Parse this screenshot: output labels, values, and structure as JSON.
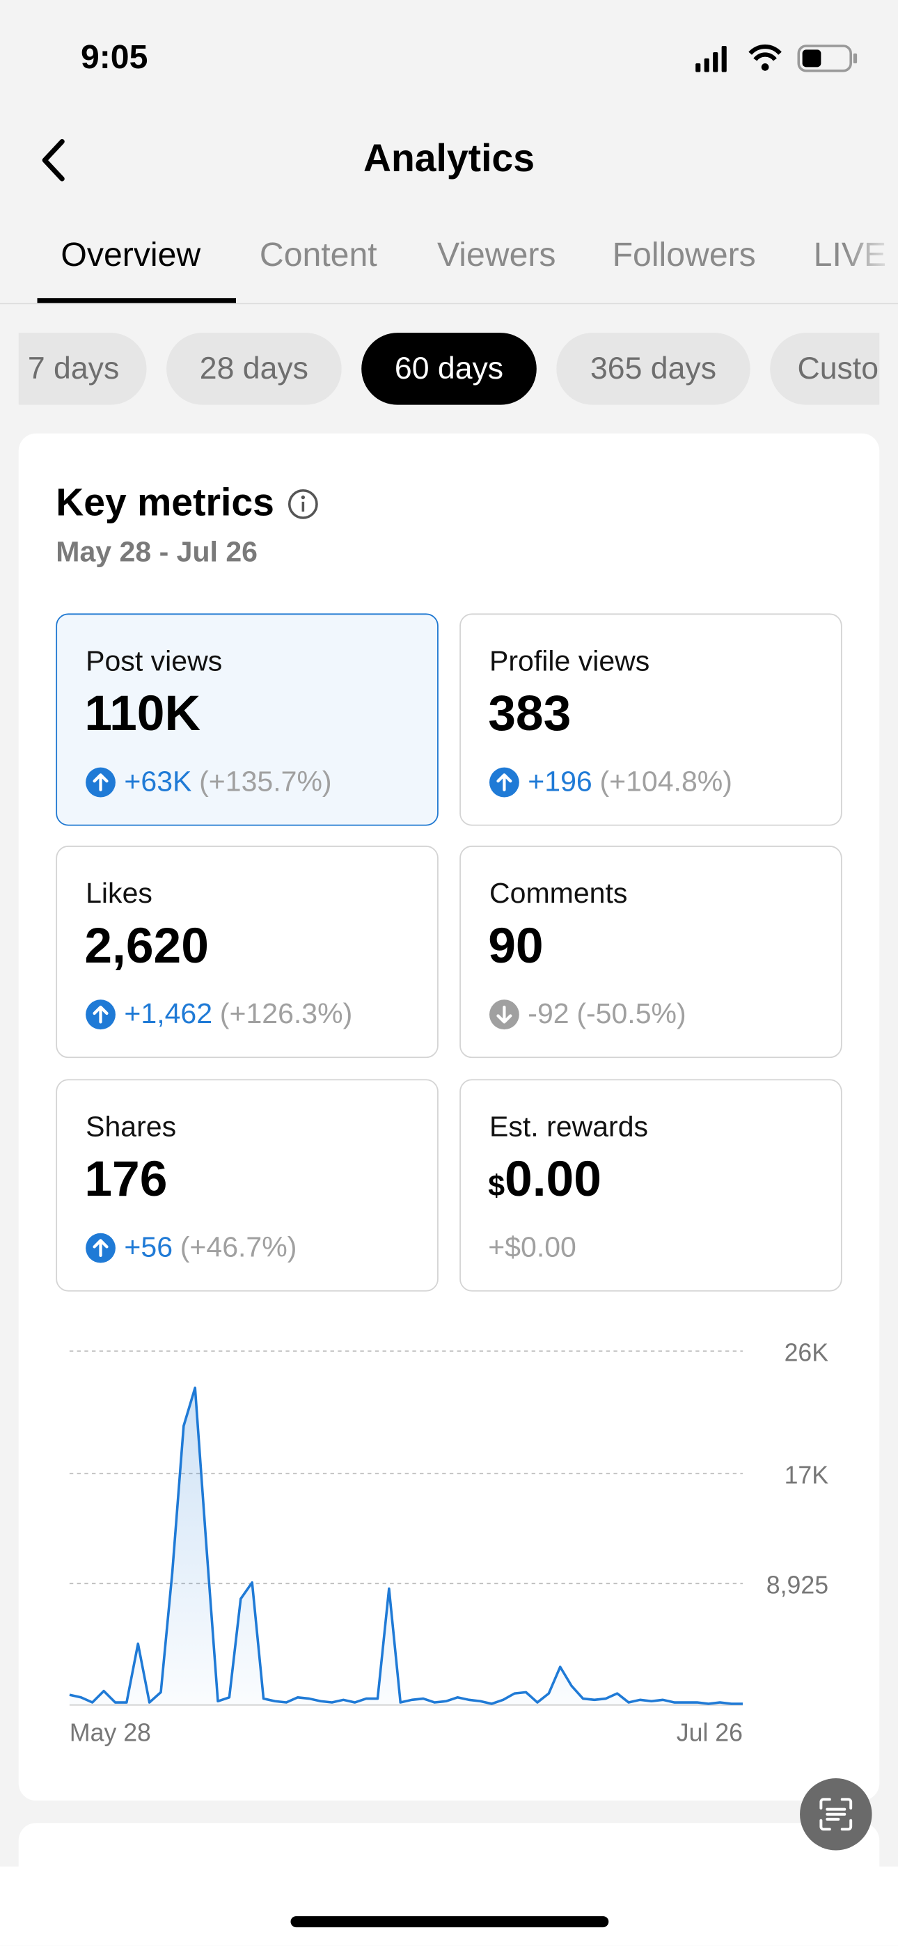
{
  "status_bar": {
    "time": "9:05"
  },
  "header": {
    "title": "Analytics"
  },
  "tabs": [
    "Overview",
    "Content",
    "Viewers",
    "Followers",
    "LIVE"
  ],
  "ranges": [
    "7 days",
    "28 days",
    "60 days",
    "365 days",
    "Custom"
  ],
  "key_metrics": {
    "title": "Key metrics",
    "date_range": "May 28 - Jul 26",
    "metrics": [
      {
        "label": "Post views",
        "value": "110K",
        "change": "+63K",
        "change_pct": "(+135.7%)",
        "trend": "up",
        "selected": true
      },
      {
        "label": "Profile views",
        "value": "383",
        "change": "+196",
        "change_pct": "(+104.8%)",
        "trend": "up"
      },
      {
        "label": "Likes",
        "value": "2,620",
        "change": "+1,462",
        "change_pct": "(+126.3%)",
        "trend": "up"
      },
      {
        "label": "Comments",
        "value": "90",
        "change": "-92",
        "change_pct": "(-50.5%)",
        "trend": "down"
      },
      {
        "label": "Shares",
        "value": "176",
        "change": "+56",
        "change_pct": "(+46.7%)",
        "trend": "up"
      },
      {
        "label": "Est. rewards",
        "currency": "$",
        "value": "0.00",
        "change": "+$0.00"
      }
    ]
  },
  "chart": {
    "type": "line",
    "color": "#1f7ad6",
    "categories": [
      "May 28",
      null,
      null,
      null,
      null,
      null,
      null,
      null,
      null,
      null,
      null,
      null,
      null,
      null,
      null,
      null,
      null,
      null,
      null,
      null,
      null,
      null,
      null,
      null,
      null,
      null,
      null,
      null,
      null,
      null,
      null,
      null,
      null,
      null,
      null,
      null,
      null,
      null,
      null,
      null,
      null,
      null,
      null,
      null,
      null,
      null,
      null,
      null,
      null,
      null,
      null,
      null,
      null,
      null,
      null,
      null,
      null,
      null,
      null,
      "Jul 26"
    ],
    "values": [
      750,
      560,
      190,
      1030,
      190,
      190,
      4500,
      190,
      940,
      9700,
      20500,
      23300,
      11600,
      280,
      560,
      7800,
      9000,
      470,
      280,
      190,
      560,
      470,
      280,
      190,
      380,
      190,
      470,
      470,
      8550,
      190,
      380,
      470,
      190,
      280,
      560,
      380,
      280,
      90,
      380,
      850,
      940,
      190,
      850,
      2800,
      1400,
      470,
      380,
      470,
      850,
      190,
      380,
      280,
      380,
      190,
      190,
      190,
      90,
      190,
      90,
      90
    ],
    "ylim": [
      0,
      26000
    ],
    "yticks": [
      {
        "value": 8925,
        "label": "8,925"
      },
      {
        "value": 17000,
        "label": "17K"
      },
      {
        "value": 26000,
        "label": "26K"
      }
    ],
    "grid": true
  }
}
